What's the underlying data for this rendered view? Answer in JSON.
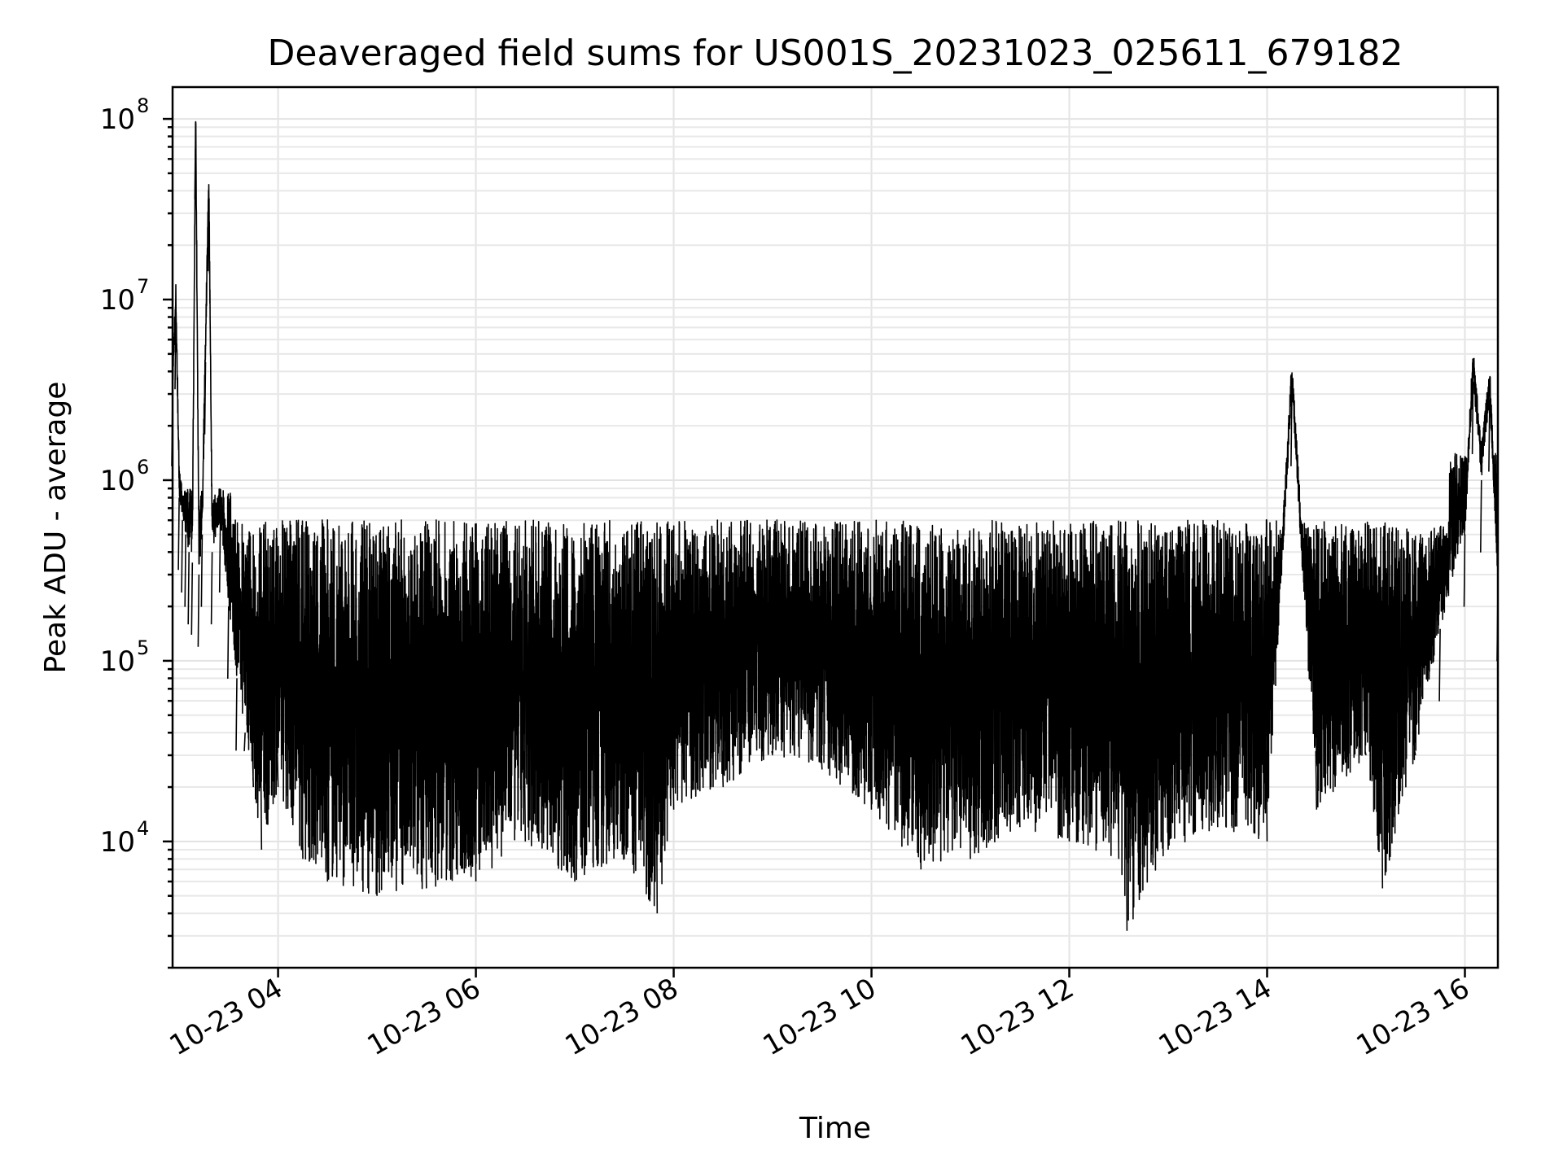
{
  "chart_data": {
    "type": "line",
    "title": "Deaveraged field sums for US001S_20231023_025611_679182",
    "xlabel": "Time",
    "ylabel": "Peak ADU - average",
    "y_scale": "log",
    "ylim": [
      2000,
      150000000
    ],
    "xlim": [
      "2023-10-23 02:56",
      "2023-10-23 16:20"
    ],
    "grid": "on",
    "x_tick_labels": [
      "10-23 04",
      "10-23 06",
      "10-23 08",
      "10-23 10",
      "10-23 12",
      "10-23 14",
      "10-23 16"
    ],
    "y_tick_labels": [
      {
        "value": 10000,
        "base": "10",
        "exp": "4"
      },
      {
        "value": 100000,
        "base": "10",
        "exp": "5"
      },
      {
        "value": 1000000,
        "base": "10",
        "exp": "6"
      },
      {
        "value": 10000000,
        "base": "10",
        "exp": "7"
      },
      {
        "value": 100000000,
        "base": "10",
        "exp": "8"
      }
    ],
    "series_color": "#000000",
    "series": [
      {
        "x": [
          "2023-10-23 02:56",
          "2023-10-23 02:58",
          "2023-10-23 03:00",
          "2023-10-23 03:02",
          "2023-10-23 03:04",
          "2023-10-23 03:06",
          "2023-10-23 03:08",
          "2023-10-23 03:10",
          "2023-10-23 03:12",
          "2023-10-23 03:14",
          "2023-10-23 03:16",
          "2023-10-23 03:18",
          "2023-10-23 03:20",
          "2023-10-23 03:25",
          "2023-10-23 03:30",
          "2023-10-23 03:35",
          "2023-10-23 03:40",
          "2023-10-23 03:45",
          "2023-10-23 03:50",
          "2023-10-23 04:00",
          "2023-10-23 04:15",
          "2023-10-23 04:30",
          "2023-10-23 05:00",
          "2023-10-23 05:30",
          "2023-10-23 06:00",
          "2023-10-23 06:30",
          "2023-10-23 07:00",
          "2023-10-23 07:30",
          "2023-10-23 07:50",
          "2023-10-23 08:00",
          "2023-10-23 08:30",
          "2023-10-23 09:00",
          "2023-10-23 09:30",
          "2023-10-23 10:00",
          "2023-10-23 10:30",
          "2023-10-23 11:00",
          "2023-10-23 11:30",
          "2023-10-23 12:00",
          "2023-10-23 12:30",
          "2023-10-23 12:35",
          "2023-10-23 13:00",
          "2023-10-23 13:30",
          "2023-10-23 14:00",
          "2023-10-23 14:15",
          "2023-10-23 14:30",
          "2023-10-23 15:00",
          "2023-10-23 15:10",
          "2023-10-23 15:30",
          "2023-10-23 15:45",
          "2023-10-23 16:00",
          "2023-10-23 16:05",
          "2023-10-23 16:10",
          "2023-10-23 16:15",
          "2023-10-23 16:20"
        ],
        "y": [
          3000000,
          8000000,
          800000,
          600000,
          500000,
          400000,
          350000,
          90000000,
          300000,
          500000,
          4500000,
          36000000,
          400000,
          600000,
          200000,
          80000,
          40000,
          20000,
          9000,
          20000,
          8000,
          6000,
          5000,
          5500,
          6000,
          10000,
          6000,
          8000,
          4000,
          15000,
          20000,
          30000,
          25000,
          15000,
          7000,
          8000,
          12000,
          10000,
          8000,
          3200,
          9000,
          12000,
          10000,
          3000000,
          15000,
          30000,
          5500,
          30000,
          150000,
          500000,
          3500000,
          1000000,
          2800000,
          250000
        ]
      }
    ]
  }
}
